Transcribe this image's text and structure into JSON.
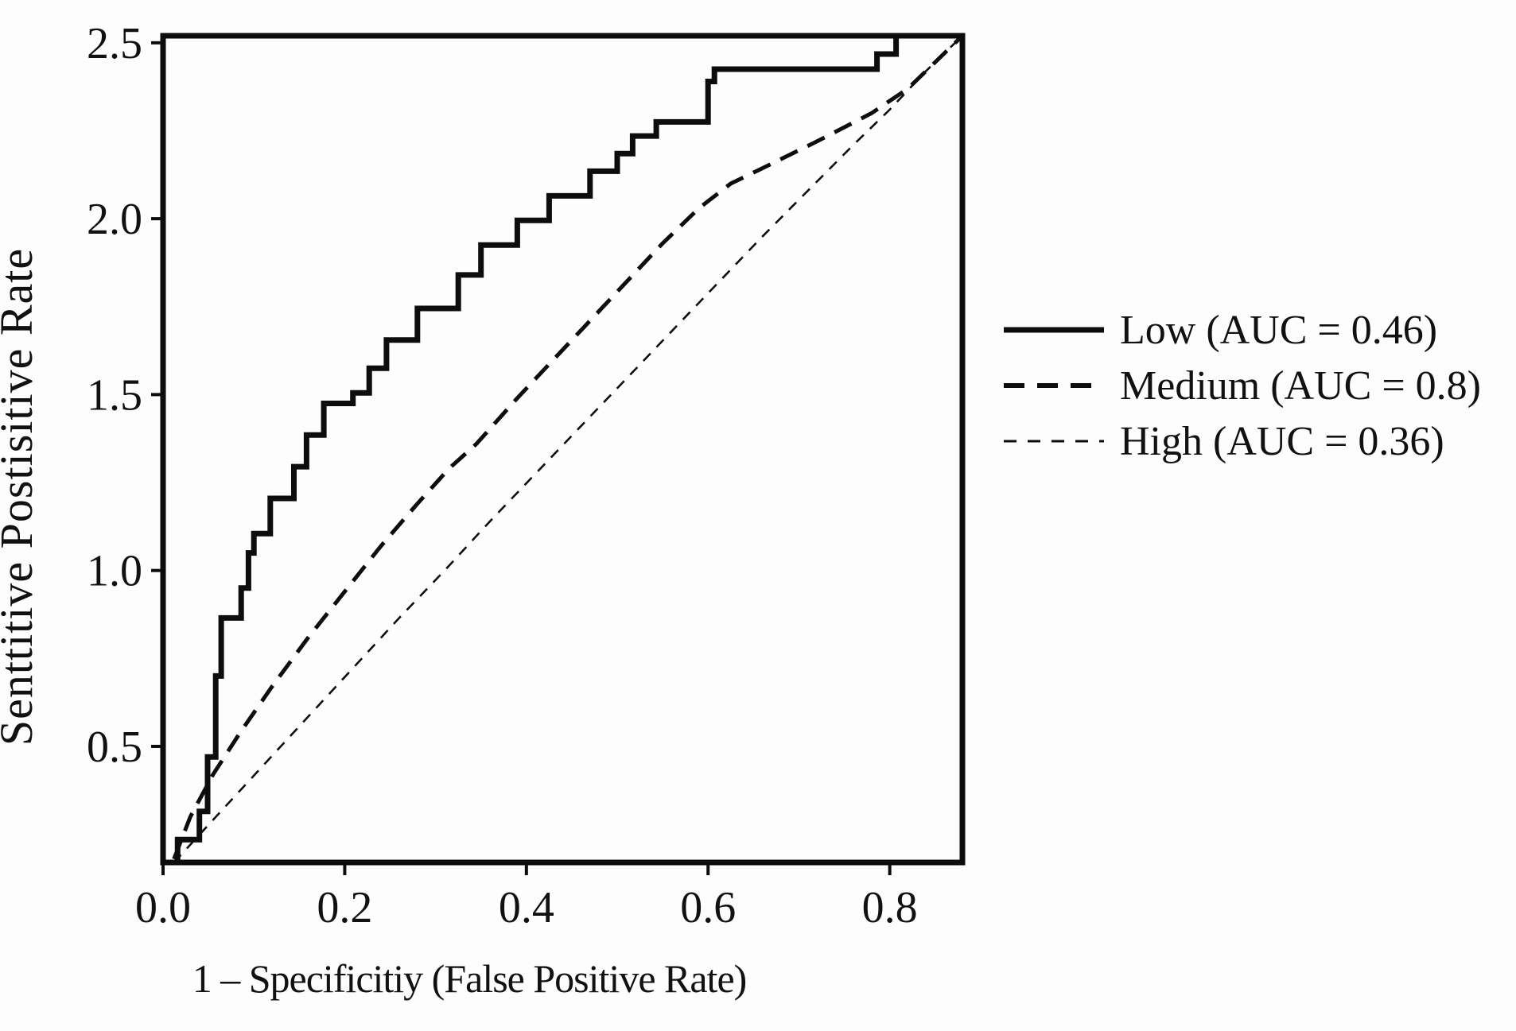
{
  "chart_data": {
    "type": "line",
    "title": "",
    "xlabel": "1 – Specificitiy (False Positive Rate)",
    "ylabel": "Senttitive Postisitive Rate",
    "xlim": [
      0,
      0.88
    ],
    "ylim": [
      0.17,
      2.52
    ],
    "grid": false,
    "legend_position": "right-outside",
    "x_ticks": {
      "values": [
        0.0,
        0.2,
        0.4,
        0.6,
        0.8
      ],
      "labels": [
        "0.0",
        "0.2",
        "0.4",
        "0.6",
        "0.8"
      ]
    },
    "y_ticks": {
      "values": [
        0.5,
        1.0,
        1.5,
        2.0,
        2.5
      ],
      "labels": [
        "0.5",
        "1.0",
        "1.5",
        "2.0",
        "2.5"
      ]
    },
    "colors": {
      "line": "#0d0d0d",
      "background": "#fdfdfd"
    },
    "series": [
      {
        "id": "low",
        "name": "Low (AUC = 0.46)",
        "auc": 0.46,
        "style": "solid",
        "points": [
          [
            0.016,
            0.17
          ],
          [
            0.016,
            0.235
          ],
          [
            0.04,
            0.235
          ],
          [
            0.04,
            0.315
          ],
          [
            0.049,
            0.315
          ],
          [
            0.049,
            0.47
          ],
          [
            0.058,
            0.47
          ],
          [
            0.058,
            0.7
          ],
          [
            0.064,
            0.7
          ],
          [
            0.064,
            0.865
          ],
          [
            0.086,
            0.865
          ],
          [
            0.086,
            0.95
          ],
          [
            0.094,
            0.95
          ],
          [
            0.094,
            1.05
          ],
          [
            0.1,
            1.05
          ],
          [
            0.1,
            1.105
          ],
          [
            0.118,
            1.105
          ],
          [
            0.118,
            1.205
          ],
          [
            0.144,
            1.205
          ],
          [
            0.144,
            1.295
          ],
          [
            0.158,
            1.295
          ],
          [
            0.158,
            1.385
          ],
          [
            0.177,
            1.385
          ],
          [
            0.177,
            1.475
          ],
          [
            0.209,
            1.475
          ],
          [
            0.209,
            1.505
          ],
          [
            0.227,
            1.505
          ],
          [
            0.227,
            1.575
          ],
          [
            0.246,
            1.575
          ],
          [
            0.246,
            1.655
          ],
          [
            0.28,
            1.655
          ],
          [
            0.28,
            1.745
          ],
          [
            0.325,
            1.745
          ],
          [
            0.325,
            1.84
          ],
          [
            0.35,
            1.84
          ],
          [
            0.35,
            1.925
          ],
          [
            0.39,
            1.925
          ],
          [
            0.39,
            1.995
          ],
          [
            0.425,
            1.995
          ],
          [
            0.425,
            2.065
          ],
          [
            0.47,
            2.065
          ],
          [
            0.47,
            2.135
          ],
          [
            0.5,
            2.135
          ],
          [
            0.5,
            2.185
          ],
          [
            0.517,
            2.185
          ],
          [
            0.517,
            2.235
          ],
          [
            0.543,
            2.235
          ],
          [
            0.543,
            2.275
          ],
          [
            0.6,
            2.275
          ],
          [
            0.6,
            2.39
          ],
          [
            0.607,
            2.39
          ],
          [
            0.607,
            2.425
          ],
          [
            0.617,
            2.425
          ],
          [
            0.786,
            2.425
          ],
          [
            0.786,
            2.468
          ],
          [
            0.807,
            2.468
          ],
          [
            0.807,
            2.52
          ],
          [
            0.88,
            2.52
          ]
        ]
      },
      {
        "id": "medium",
        "name": "Medium (AUC = 0.8)",
        "auc": 0.8,
        "style": "dashed",
        "points": [
          [
            0.012,
            0.18
          ],
          [
            0.03,
            0.3
          ],
          [
            0.055,
            0.42
          ],
          [
            0.085,
            0.54
          ],
          [
            0.12,
            0.67
          ],
          [
            0.16,
            0.81
          ],
          [
            0.2,
            0.94
          ],
          [
            0.24,
            1.07
          ],
          [
            0.28,
            1.19
          ],
          [
            0.315,
            1.29
          ],
          [
            0.345,
            1.36
          ],
          [
            0.39,
            1.49
          ],
          [
            0.43,
            1.6
          ],
          [
            0.47,
            1.71
          ],
          [
            0.51,
            1.82
          ],
          [
            0.55,
            1.93
          ],
          [
            0.59,
            2.03
          ],
          [
            0.625,
            2.1
          ],
          [
            0.665,
            2.15
          ],
          [
            0.72,
            2.22
          ],
          [
            0.78,
            2.3
          ],
          [
            0.82,
            2.37
          ],
          [
            0.88,
            2.52
          ]
        ]
      },
      {
        "id": "high",
        "name": "High (AUC = 0.36)",
        "auc": 0.36,
        "style": "fine-dashed",
        "points": [
          [
            0.012,
            0.17
          ],
          [
            0.06,
            0.305
          ],
          [
            0.11,
            0.445
          ],
          [
            0.16,
            0.585
          ],
          [
            0.21,
            0.725
          ],
          [
            0.26,
            0.865
          ],
          [
            0.31,
            1.0
          ],
          [
            0.36,
            1.14
          ],
          [
            0.41,
            1.275
          ],
          [
            0.46,
            1.41
          ],
          [
            0.51,
            1.545
          ],
          [
            0.56,
            1.68
          ],
          [
            0.61,
            1.815
          ],
          [
            0.66,
            1.95
          ],
          [
            0.71,
            2.08
          ],
          [
            0.76,
            2.21
          ],
          [
            0.8,
            2.31
          ],
          [
            0.84,
            2.42
          ],
          [
            0.88,
            2.52
          ]
        ]
      }
    ]
  },
  "legend": {
    "items": [
      {
        "label": "Low (AUC = 0.46)"
      },
      {
        "label": "Medium (AUC = 0.8)"
      },
      {
        "label": "High (AUC = 0.36)"
      }
    ]
  }
}
